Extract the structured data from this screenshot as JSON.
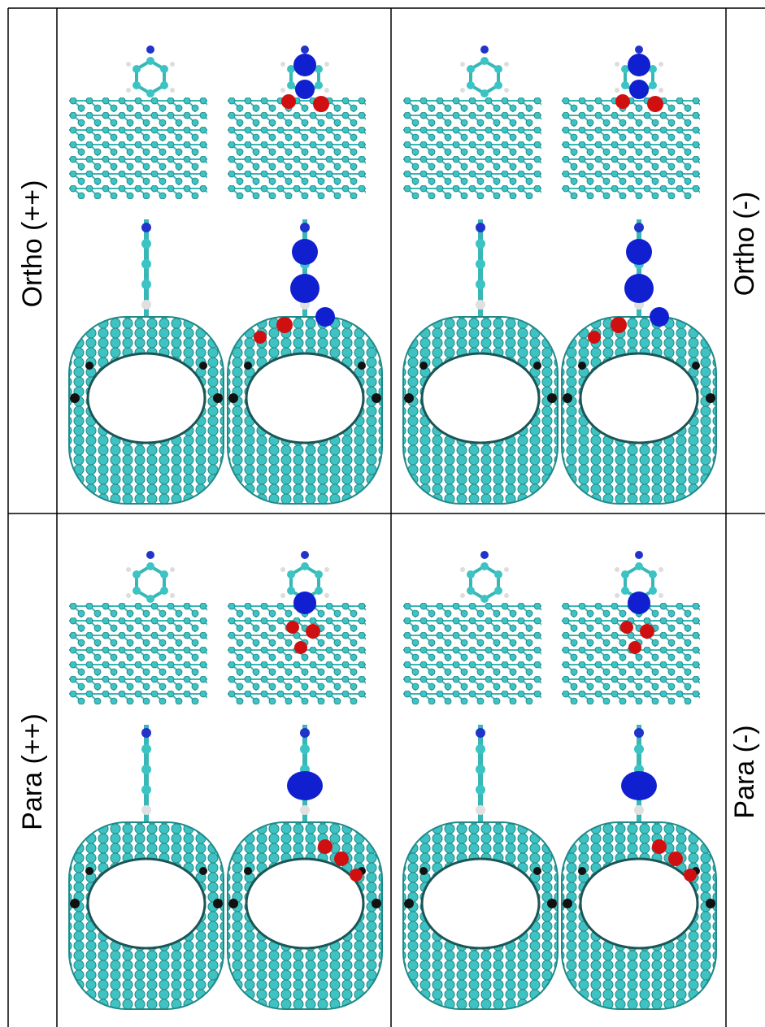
{
  "rows": [
    {
      "left_label": "Ortho (++)",
      "right_label": "Ortho (-)"
    },
    {
      "left_label": "Para (++)",
      "right_label": "Para (-)"
    }
  ]
}
